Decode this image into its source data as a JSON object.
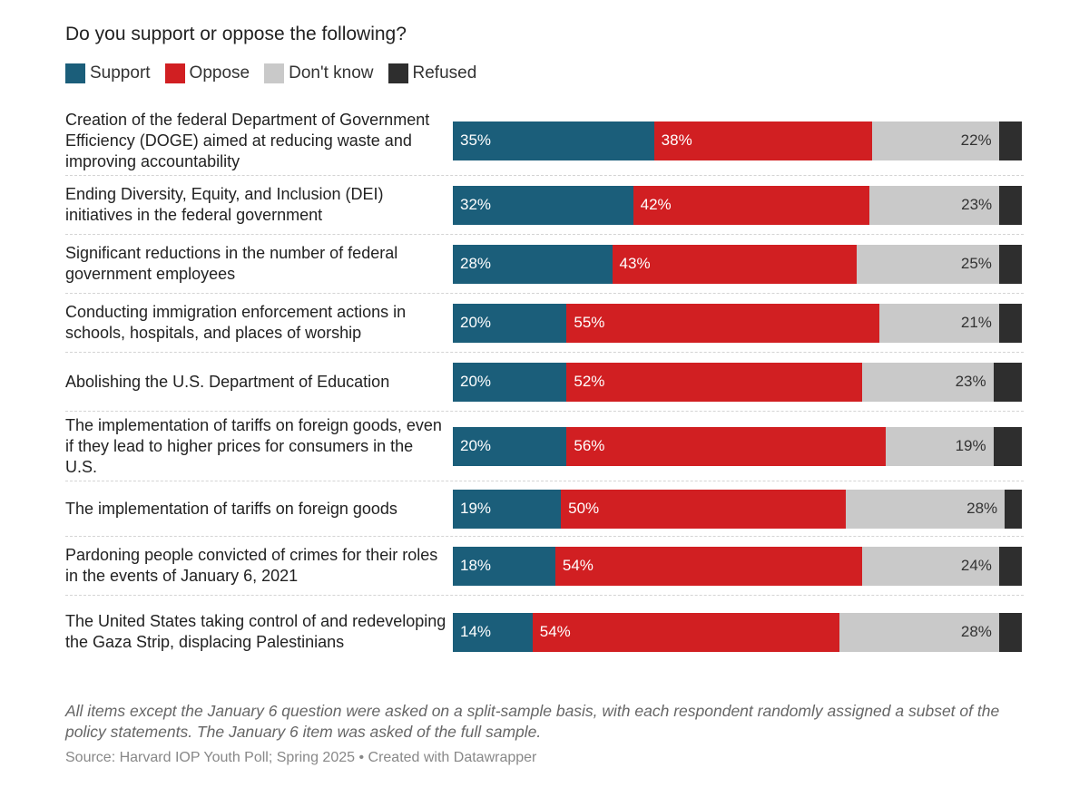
{
  "title": "Do you support or oppose the following?",
  "legend": [
    {
      "label": "Support",
      "color": "#1b5e7a"
    },
    {
      "label": "Oppose",
      "color": "#d11f22"
    },
    {
      "label": "Don't know",
      "color": "#c9c9c9"
    },
    {
      "label": "Refused",
      "color": "#2e2e2e"
    }
  ],
  "chart_data": {
    "type": "bar",
    "orientation": "horizontal",
    "stacked": true,
    "title": "Do you support or oppose the following?",
    "categories": [
      "Creation of the federal Department of Government Efficiency (DOGE) aimed at reducing waste and improving accountability",
      "Ending Diversity, Equity, and Inclusion (DEI) initiatives in the federal government",
      "Significant reductions in the number of federal government employees",
      "Conducting immigration enforcement actions in schools, hospitals, and places of worship",
      "Abolishing the U.S. Department of Education",
      "The implementation of tariffs on foreign goods, even if they lead to higher prices for consumers in the U.S.",
      "The implementation of tariffs on foreign goods",
      "Pardoning people convicted of crimes for their roles in the events of January 6, 2021",
      "The United States taking control of and redeveloping the Gaza Strip, displacing Palestinians"
    ],
    "series": [
      {
        "name": "Support",
        "color": "#1b5e7a",
        "values": [
          35,
          32,
          28,
          20,
          20,
          20,
          19,
          18,
          14
        ]
      },
      {
        "name": "Oppose",
        "color": "#d11f22",
        "values": [
          38,
          42,
          43,
          55,
          52,
          56,
          50,
          54,
          54
        ]
      },
      {
        "name": "Don't know",
        "color": "#c9c9c9",
        "values": [
          22,
          23,
          25,
          21,
          23,
          19,
          28,
          24,
          28
        ]
      },
      {
        "name": "Refused",
        "color": "#2e2e2e",
        "values": [
          4,
          4,
          4,
          4,
          5,
          5,
          3,
          4,
          4
        ]
      }
    ],
    "unit": "%",
    "xlim": [
      0,
      100
    ]
  },
  "note": "All items except the January 6 question were asked on a split-sample basis, with each respondent randomly assigned a subset of the policy statements. The January 6 item was asked of the full sample.",
  "source": "Source: Harvard IOP Youth Poll; Spring 2025 • Created with Datawrapper"
}
